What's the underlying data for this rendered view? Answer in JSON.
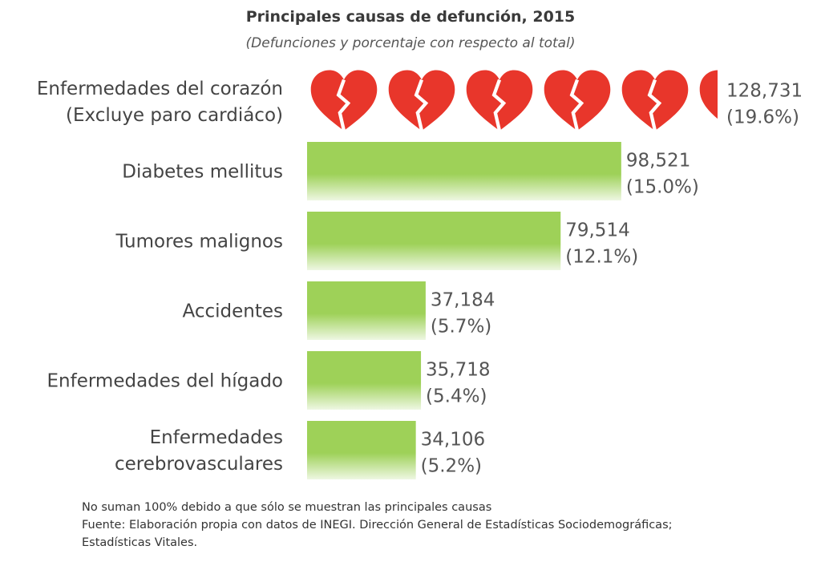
{
  "chart_data": {
    "type": "bar",
    "orientation": "horizontal",
    "title": "Principales causas de defunción, 2015",
    "subtitle": "(Defunciones y porcentaje con respecto al total)",
    "categories": [
      [
        "Enfermedades del corazón",
        "(Excluye paro cardiáco)"
      ],
      [
        "Diabetes mellitus"
      ],
      [
        "Tumores malignos"
      ],
      [
        "Accidentes"
      ],
      [
        "Enfermedades del hígado"
      ],
      [
        "Enfermedades",
        "cerebrovasculares"
      ]
    ],
    "values": [
      128731,
      98521,
      79514,
      37184,
      35718,
      34106
    ],
    "value_labels": [
      "128,731",
      "98,521",
      "79,514",
      "37,184",
      "35,718",
      "34,106"
    ],
    "percent_labels": [
      "(19.6%)",
      "(15.0%)",
      "(12.1%)",
      "(5.7%)",
      "(5.4%)",
      "(5.2%)"
    ],
    "percents": [
      19.6,
      15.0,
      12.1,
      5.7,
      5.4,
      5.2
    ],
    "first_bar_style": "broken-hearts",
    "colors": {
      "bar": "#9ed158",
      "bar_fade": "#eef7e2",
      "heart": "#e8362b"
    }
  },
  "notes": [
    "No suman 100% debido a que sólo se muestran las principales causas",
    "Fuente: Elaboración propia con datos de INEGI.  Dirección General de Estadísticas Sociodemográficas;",
    "Estadísticas Vitales."
  ]
}
